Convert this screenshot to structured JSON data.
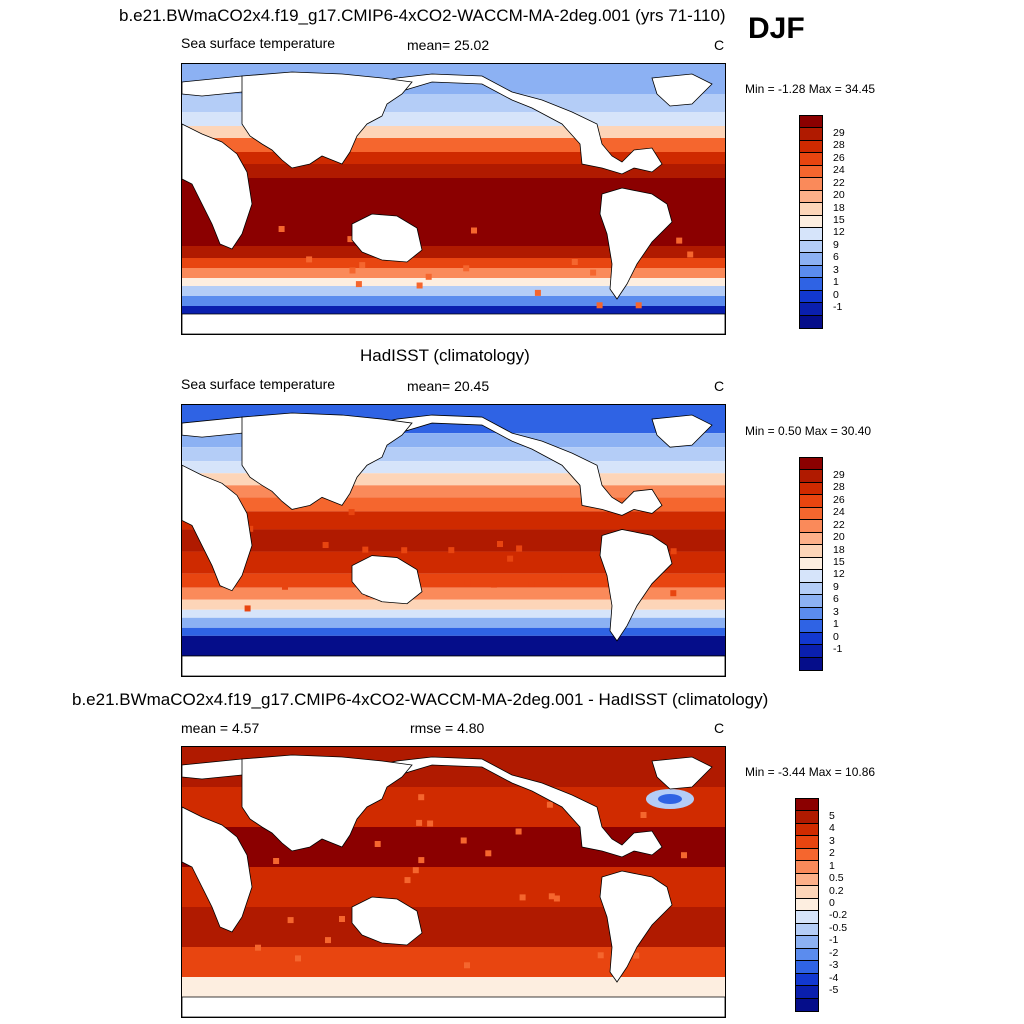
{
  "season": "DJF",
  "panels": [
    {
      "title": "b.e21.BWmaCO2x4.f19_g17.CMIP6-4xCO2-WACCM-MA-2deg.001 (yrs 71-110)",
      "left_label": "Sea surface temperature",
      "center_label": "mean=  25.02",
      "units": "C",
      "minmax": "Min =  -1.28 Max =  34.45",
      "colorbar_labels": [
        "29",
        "28",
        "26",
        "24",
        "22",
        "20",
        "18",
        "15",
        "12",
        "9",
        "6",
        "3",
        "1",
        "0",
        "-1"
      ],
      "map_style": "model"
    },
    {
      "title": "HadISST (climatology)",
      "left_label": "Sea surface temperature",
      "center_label": "mean=  20.45",
      "units": "C",
      "minmax": "Min =   0.50 Max =  30.40",
      "colorbar_labels": [
        "29",
        "28",
        "26",
        "24",
        "22",
        "20",
        "18",
        "15",
        "12",
        "9",
        "6",
        "3",
        "1",
        "0",
        "-1"
      ],
      "map_style": "obs"
    },
    {
      "title": "b.e21.BWmaCO2x4.f19_g17.CMIP6-4xCO2-WACCM-MA-2deg.001 - HadISST (climatology)",
      "left_label": "mean =   4.57",
      "center_label": "rmse =   4.80",
      "units": "C",
      "minmax": "Min =  -3.44 Max =  10.86",
      "colorbar_labels": [
        "5",
        "4",
        "3",
        "2",
        "1",
        "0.5",
        "0.2",
        "0",
        "-0.2",
        "-0.5",
        "-1",
        "-2",
        "-3",
        "-4",
        "-5"
      ],
      "map_style": "diff"
    }
  ],
  "colors": {
    "abs_scale": [
      "#8b0000",
      "#b01a00",
      "#cf2a00",
      "#e84510",
      "#f5662e",
      "#fa8a5a",
      "#fdb089",
      "#fdd5b8",
      "#fdeee0",
      "#d6e4fa",
      "#b4cdf7",
      "#8cb1f3",
      "#5b8cee",
      "#2f63e4",
      "#1238d0",
      "#0a1fae",
      "#050d8a"
    ],
    "diff_scale": [
      "#8b0000",
      "#b01a00",
      "#d02b00",
      "#e84510",
      "#f5662e",
      "#fa8a5a",
      "#fdb089",
      "#fdd5b8",
      "#fdeee0",
      "#d6e4fa",
      "#b4cdf7",
      "#8cb1f3",
      "#5b8cee",
      "#2f63e4",
      "#1238d0",
      "#0a1fae",
      "#050d8a"
    ],
    "land": "#ffffff"
  }
}
